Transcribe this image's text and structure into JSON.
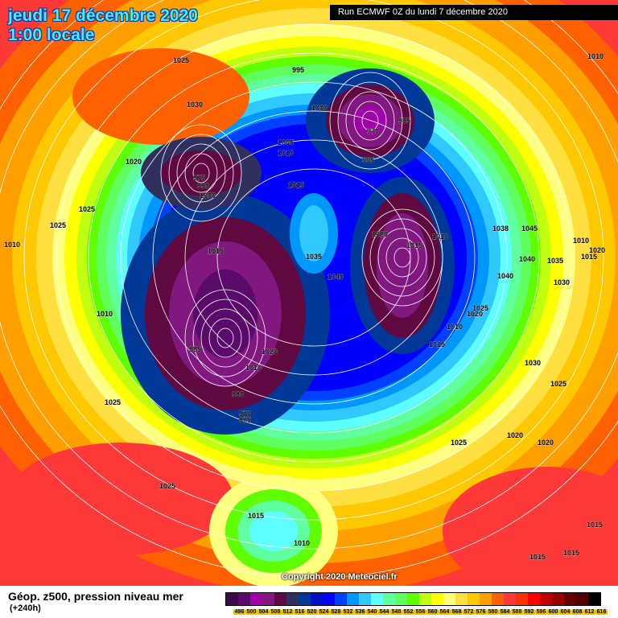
{
  "header": {
    "date": "jeudi 17 décembre 2020",
    "time": "1:00 locale",
    "run": "Run ECMWF 0Z du lundi 7 décembre 2020"
  },
  "copyright": "Copyright 2020 Meteociel.fr",
  "footer": {
    "field": "Géop. z500, pression niveau mer",
    "lead": "(+240h)"
  },
  "legend": {
    "values": [
      "496",
      "500",
      "504",
      "508",
      "512",
      "516",
      "520",
      "524",
      "528",
      "532",
      "536",
      "540",
      "544",
      "548",
      "552",
      "556",
      "560",
      "564",
      "568",
      "572",
      "576",
      "580",
      "584",
      "588",
      "592",
      "596",
      "600",
      "604",
      "608",
      "612",
      "616"
    ],
    "colors": [
      "#3a0a4a",
      "#5a0a6a",
      "#a000a8",
      "#801880",
      "#600840",
      "#303060",
      "#003898",
      "#0010c8",
      "#0000ff",
      "#0040ff",
      "#0098ff",
      "#30c8ff",
      "#60ffff",
      "#60ffa0",
      "#60ff60",
      "#60ff00",
      "#c0ff10",
      "#ffff00",
      "#ffff80",
      "#ffe040",
      "#ffc800",
      "#ffa000",
      "#ff6000",
      "#ff3838",
      "#ff3000",
      "#ff0000",
      "#c00000",
      "#980000",
      "#600000",
      "#500000",
      "#000000"
    ]
  },
  "pressure_labels": [
    "1025",
    "1030",
    "995",
    "1000",
    "970",
    "985",
    "1010",
    "1020",
    "1005",
    "1010",
    "995",
    "975",
    "990",
    "1000",
    "1015",
    "1025",
    "1025",
    "1010",
    "1010",
    "1015",
    "1035",
    "1040",
    "1020",
    "1010",
    "1015",
    "1045",
    "1038",
    "1040",
    "1035",
    "1030",
    "1010",
    "1015",
    "1020",
    "1040",
    "1025",
    "1020",
    "1010",
    "1015",
    "985",
    "1020",
    "1010",
    "980",
    "970",
    "975",
    "1025",
    "1030",
    "1025",
    "1025",
    "1020",
    "1020",
    "1025",
    "1015",
    "1010",
    "1015",
    "1015",
    "1015"
  ]
}
